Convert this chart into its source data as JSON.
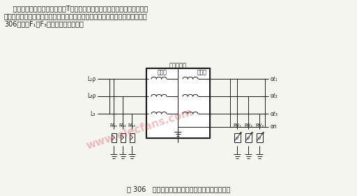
{
  "bg_color": "#f5f5f0",
  "line_color": "#1a1a1a",
  "text_color": "#1a1a1a",
  "watermark_color": "#cc3333",
  "title_lines": [
    "    这种接法可以避免配电变压器T的高压侧雷电感应到变压器低压侧，使用户",
    "电气设备过压而损坏，也可避免低压侧雷电击穿变压器绝缘层事故的发生。如图",
    "306所示。F₁～F₃为高压阀式避雷器。"
  ],
  "caption": "图 306   电压敏电阵器对配电变压器低压侧防雷电路",
  "transformer_label": "配电变压器",
  "hv_label": "高压侧",
  "lv_label": "低压侧",
  "line_labels_left": [
    "L₁ρ",
    "L₂ρ",
    "L₃"
  ],
  "line_labels_right": [
    "oℓ₁",
    "oℓ₂",
    "oℓ₃"
  ],
  "neutral_label": "on",
  "fa_labels": [
    "FA₁",
    "FA₂",
    "FA₃"
  ],
  "rv_labels": [
    "RV₁",
    "RV₂",
    "RV₃"
  ],
  "font_size_title": 7.0,
  "font_size_label": 5.5,
  "font_size_caption": 7.0
}
